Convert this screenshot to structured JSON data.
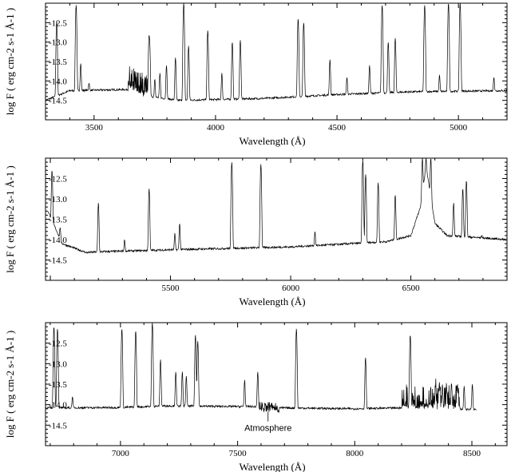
{
  "chart_data": [
    {
      "type": "line",
      "xlabel": "Wavelength (Å)",
      "ylabel": "log F ( erg cm-2 s-1 Å-1 )",
      "xlim": [
        3300,
        5200
      ],
      "ylim": [
        -15.0,
        -12.0
      ],
      "xticks": [
        3500,
        4000,
        4500,
        5000
      ],
      "yticks": [
        -12.5,
        -13.0,
        -13.5,
        -14.0,
        -14.5
      ],
      "continuum": [
        [
          3300,
          -14.5
        ],
        [
          3400,
          -14.25
        ],
        [
          3650,
          -14.22
        ],
        [
          3700,
          -14.38
        ],
        [
          3850,
          -14.5
        ],
        [
          4200,
          -14.45
        ],
        [
          4500,
          -14.35
        ],
        [
          4800,
          -14.28
        ],
        [
          5200,
          -14.25
        ]
      ],
      "lines": [
        [
          3346,
          -12.45
        ],
        [
          3426,
          -12.05
        ],
        [
          3445,
          -13.55
        ],
        [
          3479,
          -14.05
        ],
        [
          3726,
          -12.9
        ],
        [
          3729,
          -13.1
        ],
        [
          3750,
          -13.95
        ],
        [
          3771,
          -13.8
        ],
        [
          3798,
          -13.6
        ],
        [
          3835,
          -13.4
        ],
        [
          3869,
          -12.0
        ],
        [
          3889,
          -13.1
        ],
        [
          3968,
          -12.7
        ],
        [
          4026,
          -13.8
        ],
        [
          4069,
          -13.0
        ],
        [
          4102,
          -12.95
        ],
        [
          4340,
          -12.4
        ],
        [
          4363,
          -12.5
        ],
        [
          4471,
          -13.45
        ],
        [
          4541,
          -13.9
        ],
        [
          4634,
          -13.6
        ],
        [
          4686,
          -12.05
        ],
        [
          4711,
          -13.0
        ],
        [
          4740,
          -12.9
        ],
        [
          4861,
          -12.05
        ],
        [
          4922,
          -13.85
        ],
        [
          4959,
          -12.0
        ],
        [
          5007,
          -12.0
        ],
        [
          5146,
          -13.9
        ]
      ]
    },
    {
      "type": "line",
      "xlabel": "Wavelength (Å)",
      "ylabel": "log F ( erg cm-2 s-1 Å-1 )",
      "xlim": [
        4980,
        6900
      ],
      "ylim": [
        -15.0,
        -12.0
      ],
      "xticks": [
        5500,
        6000,
        6500
      ],
      "yticks": [
        -12.5,
        -13.0,
        -13.5,
        -14.0,
        -14.5
      ],
      "continuum": [
        [
          4990,
          -13.3
        ],
        [
          5050,
          -14.1
        ],
        [
          5150,
          -14.32
        ],
        [
          5200,
          -14.3
        ],
        [
          5500,
          -14.25
        ],
        [
          6000,
          -14.18
        ],
        [
          6400,
          -14.05
        ],
        [
          6500,
          -13.9
        ],
        [
          6540,
          -13.2
        ],
        [
          6563,
          -12.2
        ],
        [
          6600,
          -13.6
        ],
        [
          6650,
          -13.9
        ],
        [
          6900,
          -14.0
        ]
      ],
      "lines": [
        [
          5007,
          -12.3
        ],
        [
          5041,
          -13.7
        ],
        [
          5200,
          -13.1
        ],
        [
          5309,
          -14.0
        ],
        [
          5411,
          -12.75
        ],
        [
          5518,
          -13.85
        ],
        [
          5538,
          -13.6
        ],
        [
          5755,
          -12.1
        ],
        [
          5876,
          -12.15
        ],
        [
          6101,
          -13.8
        ],
        [
          6300,
          -12.05
        ],
        [
          6312,
          -12.4
        ],
        [
          6364,
          -12.6
        ],
        [
          6435,
          -12.9
        ],
        [
          6548,
          -12.0
        ],
        [
          6563,
          -12.0
        ],
        [
          6583,
          -12.0
        ],
        [
          6678,
          -13.1
        ],
        [
          6716,
          -12.75
        ],
        [
          6731,
          -12.55
        ],
        [
          6795,
          -13.9
        ]
      ]
    },
    {
      "type": "line",
      "xlabel": "Wavelength (Å)",
      "ylabel": "log F ( erg cm-2 s-1 Å-1 )",
      "xlim": [
        6680,
        8650
      ],
      "ylim": [
        -15.0,
        -12.0
      ],
      "xticks": [
        7000,
        7500,
        8000,
        8500
      ],
      "yticks": [
        -12.5,
        -13.0,
        -13.5,
        -14.0,
        -14.5
      ],
      "continuum": [
        [
          6680,
          -14.08
        ],
        [
          7000,
          -14.07
        ],
        [
          7200,
          -14.03
        ],
        [
          7600,
          -14.05
        ],
        [
          7700,
          -14.08
        ],
        [
          8000,
          -14.1
        ],
        [
          8200,
          -14.08
        ],
        [
          8520,
          -14.12
        ]
      ],
      "lines": [
        [
          6716,
          -12.1
        ],
        [
          6731,
          -12.15
        ],
        [
          6795,
          -13.8
        ],
        [
          7006,
          -12.15
        ],
        [
          7065,
          -12.2
        ],
        [
          7136,
          -12.0
        ],
        [
          7171,
          -12.9
        ],
        [
          7236,
          -13.2
        ],
        [
          7264,
          -13.2
        ],
        [
          7281,
          -13.3
        ],
        [
          7320,
          -12.3
        ],
        [
          7330,
          -12.45
        ],
        [
          7530,
          -13.4
        ],
        [
          7586,
          -13.2
        ],
        [
          7751,
          -12.15
        ],
        [
          8046,
          -12.85
        ],
        [
          8237,
          -12.3
        ],
        [
          8345,
          -13.6
        ],
        [
          8361,
          -13.5
        ],
        [
          8374,
          -13.55
        ],
        [
          8392,
          -13.6
        ],
        [
          8413,
          -13.5
        ],
        [
          8438,
          -13.55
        ],
        [
          8467,
          -13.55
        ],
        [
          8502,
          -13.5
        ]
      ],
      "annotations": [
        {
          "text": "Atmosphere",
          "x": 7630
        }
      ]
    }
  ]
}
